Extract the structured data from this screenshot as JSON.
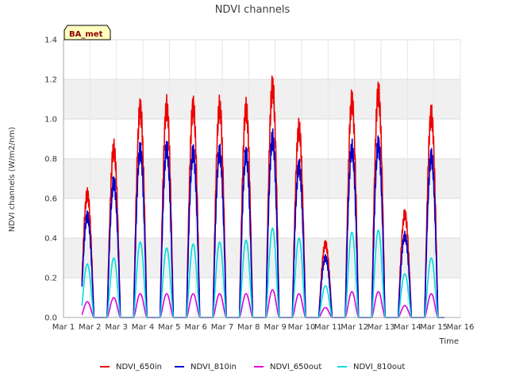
{
  "chart_data": {
    "type": "line",
    "title": "NDVI channels",
    "xlabel": "Time",
    "ylabel": "NDVI channels (W/m2/nm)",
    "ylim": [
      0,
      1.4
    ],
    "xlim": [
      1,
      16
    ],
    "yticks": [
      0.0,
      0.2,
      0.4,
      0.6,
      0.8,
      1.0,
      1.2,
      1.4
    ],
    "ytick_labels": [
      "0.0",
      "0.2",
      "0.4",
      "0.6",
      "0.8",
      "1.0",
      "1.2",
      "1.4"
    ],
    "xticks": [
      1,
      2,
      3,
      4,
      5,
      6,
      7,
      8,
      9,
      10,
      11,
      12,
      13,
      14,
      15,
      16
    ],
    "xtick_labels": [
      "Mar 1",
      "Mar 2",
      "Mar 3",
      "Mar 4",
      "Mar 5",
      "Mar 6",
      "Mar 7",
      "Mar 8",
      "Mar 9",
      "Mar 10",
      "Mar 11",
      "Mar 12",
      "Mar 13",
      "Mar 14",
      "Mar 15",
      "Mar 16"
    ],
    "grid": true,
    "badge": "BA_met",
    "days": [
      1.9,
      2.9,
      3.9,
      4.9,
      5.9,
      6.9,
      7.9,
      8.9,
      9.9,
      10.9,
      11.9,
      12.9,
      13.9,
      14.9
    ],
    "series": [
      {
        "name": "NDVI_650in",
        "color": "#ee0000",
        "peaks": [
          0.62,
          0.85,
          1.05,
          1.06,
          1.06,
          1.06,
          1.05,
          1.16,
          0.95,
          0.37,
          1.09,
          1.13,
          0.52,
          1.02
        ]
      },
      {
        "name": "NDVI_810in",
        "color": "#0000cc",
        "peaks": [
          0.51,
          0.68,
          0.84,
          0.85,
          0.83,
          0.83,
          0.82,
          0.9,
          0.76,
          0.3,
          0.85,
          0.87,
          0.41,
          0.81
        ]
      },
      {
        "name": "NDVI_650out",
        "color": "#dd00dd",
        "peaks": [
          0.08,
          0.1,
          0.12,
          0.12,
          0.12,
          0.12,
          0.12,
          0.14,
          0.12,
          0.05,
          0.13,
          0.13,
          0.06,
          0.12
        ]
      },
      {
        "name": "NDVI_810out",
        "color": "#00dddd",
        "peaks": [
          0.27,
          0.3,
          0.38,
          0.35,
          0.37,
          0.38,
          0.39,
          0.45,
          0.4,
          0.16,
          0.43,
          0.44,
          0.22,
          0.3
        ]
      }
    ]
  }
}
